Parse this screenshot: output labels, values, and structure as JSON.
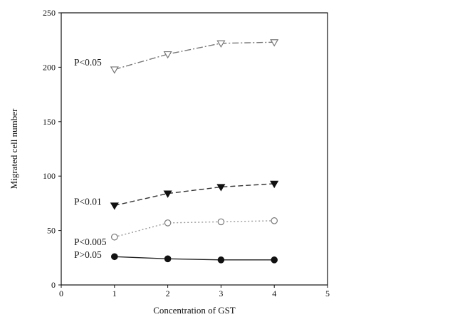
{
  "chart_data": {
    "type": "line",
    "xlabel": "Concentration of GST",
    "ylabel": "Migrated cell number",
    "xlim": [
      0,
      5
    ],
    "ylim": [
      0,
      250
    ],
    "xticks": [
      0,
      1,
      2,
      3,
      4,
      5
    ],
    "yticks": [
      0,
      50,
      100,
      150,
      200,
      250
    ],
    "grid": false,
    "x": [
      1,
      2,
      3,
      4
    ],
    "series": [
      {
        "values": [
          198,
          212,
          222,
          223
        ],
        "marker": "open-triangle-down",
        "line": "dashdot",
        "color": "#777777"
      },
      {
        "values": [
          73,
          84,
          90,
          93
        ],
        "marker": "filled-triangle-down",
        "line": "dashed",
        "color": "#333333"
      },
      {
        "values": [
          44,
          57,
          58,
          59
        ],
        "marker": "open-circle",
        "line": "dotted",
        "color": "#999999"
      },
      {
        "values": [
          26,
          24,
          23,
          23
        ],
        "marker": "filled-circle",
        "line": "solid",
        "color": "#222222"
      }
    ],
    "annotations": [
      {
        "text": "P<0.05",
        "y": 205
      },
      {
        "text": "P<0.01",
        "y": 77
      },
      {
        "text": "P<0.005",
        "y": 40
      },
      {
        "text": "P>0.05",
        "y": 28
      }
    ]
  }
}
